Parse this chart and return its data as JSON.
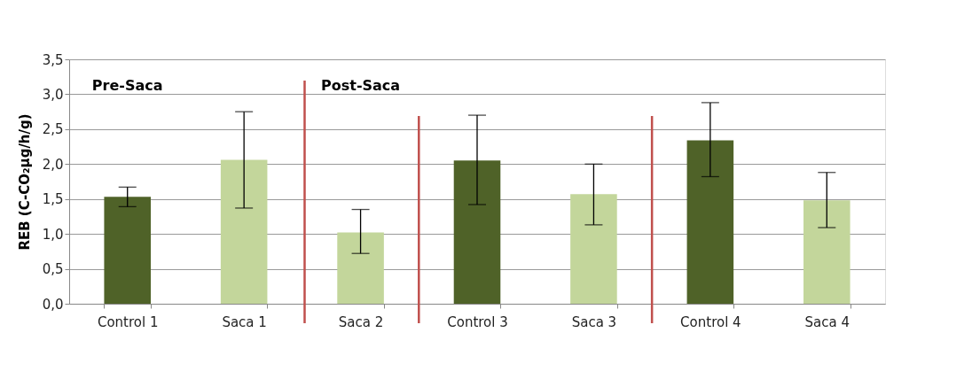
{
  "chart_data": {
    "type": "bar",
    "ylabel": "REB (C-CO₂µg/h/g)",
    "categories": [
      "Control 1",
      "Saca 1",
      "Saca 2",
      "Control 3",
      "Saca 3",
      "Control 4",
      "Saca 4"
    ],
    "values": [
      1.53,
      2.06,
      1.02,
      2.05,
      1.57,
      2.34,
      1.48
    ],
    "colors": [
      "#4f6228",
      "#c3d69b",
      "#c3d69b",
      "#4f6228",
      "#c3d69b",
      "#4f6228",
      "#c3d69b"
    ],
    "errors": [
      [
        1.39,
        1.67
      ],
      [
        1.37,
        2.75
      ],
      [
        0.72,
        1.35
      ],
      [
        1.42,
        2.7
      ],
      [
        1.13,
        2.0
      ],
      [
        1.82,
        2.88
      ],
      [
        1.09,
        1.88
      ]
    ],
    "ylim": [
      0,
      3.5
    ],
    "yticks": [
      {
        "value": 0,
        "label": "0,0"
      },
      {
        "value": 0.5,
        "label": "0,5"
      },
      {
        "value": 1,
        "label": "1,0"
      },
      {
        "value": 1.5,
        "label": "1,5"
      },
      {
        "value": 2,
        "label": "2,0"
      },
      {
        "value": 2.5,
        "label": "2,5"
      },
      {
        "value": 3,
        "label": "3,0"
      },
      {
        "value": 3.5,
        "label": "3,5"
      }
    ],
    "grid": "y",
    "annotations": [
      "Pre-Saca",
      "Post-Saca"
    ]
  }
}
